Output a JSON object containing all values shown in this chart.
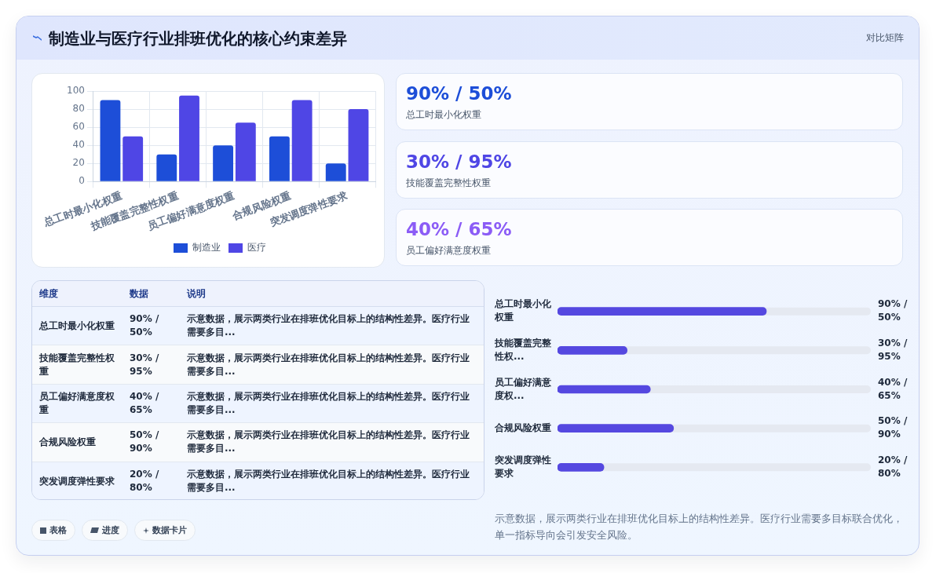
{
  "chart_data": [
    {
      "type": "other",
      "title": "制造业与医疗行业排班优化的核心约束差异",
      "subtitle": "对比矩阵"
    },
    {
      "type": "bar",
      "categories": [
        "总工时最小化权重",
        "技能覆盖完整性权重",
        "员工偏好满意度权重",
        "合规风险权重",
        "突发调度弹性要求"
      ],
      "series": [
        {
          "name": "制造业",
          "color": "#1d4ed8",
          "values": [
            90,
            30,
            40,
            50,
            20
          ]
        },
        {
          "name": "医疗",
          "color": "#4f46e5",
          "values": [
            50,
            95,
            65,
            90,
            80
          ]
        }
      ],
      "ylim": [
        0,
        100
      ],
      "yticks": [
        0,
        20,
        40,
        60,
        80,
        100
      ],
      "grid": true,
      "legend": "bottom"
    },
    {
      "type": "other",
      "categories": [
        "总工时最小化权重",
        "技能覆盖完整性权重",
        "员工偏好满意度权重"
      ],
      "value_labels": [
        "90% / 50%",
        "30% / 95%",
        "40% / 65%"
      ]
    },
    {
      "type": "other",
      "categories": [
        "总工时最小化权重",
        "技能覆盖完整性权重",
        "员工偏好满意度权重",
        "合规风险权重",
        "突发调度弹性要求"
      ],
      "value_labels": [
        "90% / 50%",
        "30% / 95%",
        "40% / 65%",
        "50% / 90%",
        "20% / 80%"
      ],
      "annotations": [
        "维度",
        "数据",
        "说明",
        "示意数据，展示两类行业在排班优化目标上的结构性差异。医疗行业需要多目...",
        "示意数据，展示两类行业在排班优化目标上的结构性差异。医疗行业需要多目...",
        "示意数据，展示两类行业在排班优化目标上的结构性差异。医疗行业需要多目...",
        "示意数据，展示两类行业在排班优化目标上的结构性差异。医疗行业需要多目...",
        "示意数据，展示两类行业在排班优化目标上的结构性差异。医疗行业需要多目...",
        "表格",
        "进度",
        "数据卡片"
      ]
    },
    {
      "type": "bar",
      "orientation": "horizontal",
      "categories": [
        "总工时最小化权重",
        "技能覆盖完整性权...",
        "员工偏好满意度权...",
        "合规风险权重",
        "突发调度弹性要求"
      ],
      "values": [
        90,
        30,
        40,
        50,
        20
      ],
      "color": "#5548e0",
      "xlim": [
        0,
        135
      ],
      "value_labels": [
        "90% / 50%",
        "30% / 95%",
        "40% / 65%",
        "50% / 90%",
        "20% / 80%"
      ],
      "tick_labels": "y",
      "annotations": [
        "示意数据，展示两类行业在排班优化目标上的结构性差异。医疗行业需要多目标联合优化，单一指标导向会引发安全风险。"
      ]
    }
  ]
}
